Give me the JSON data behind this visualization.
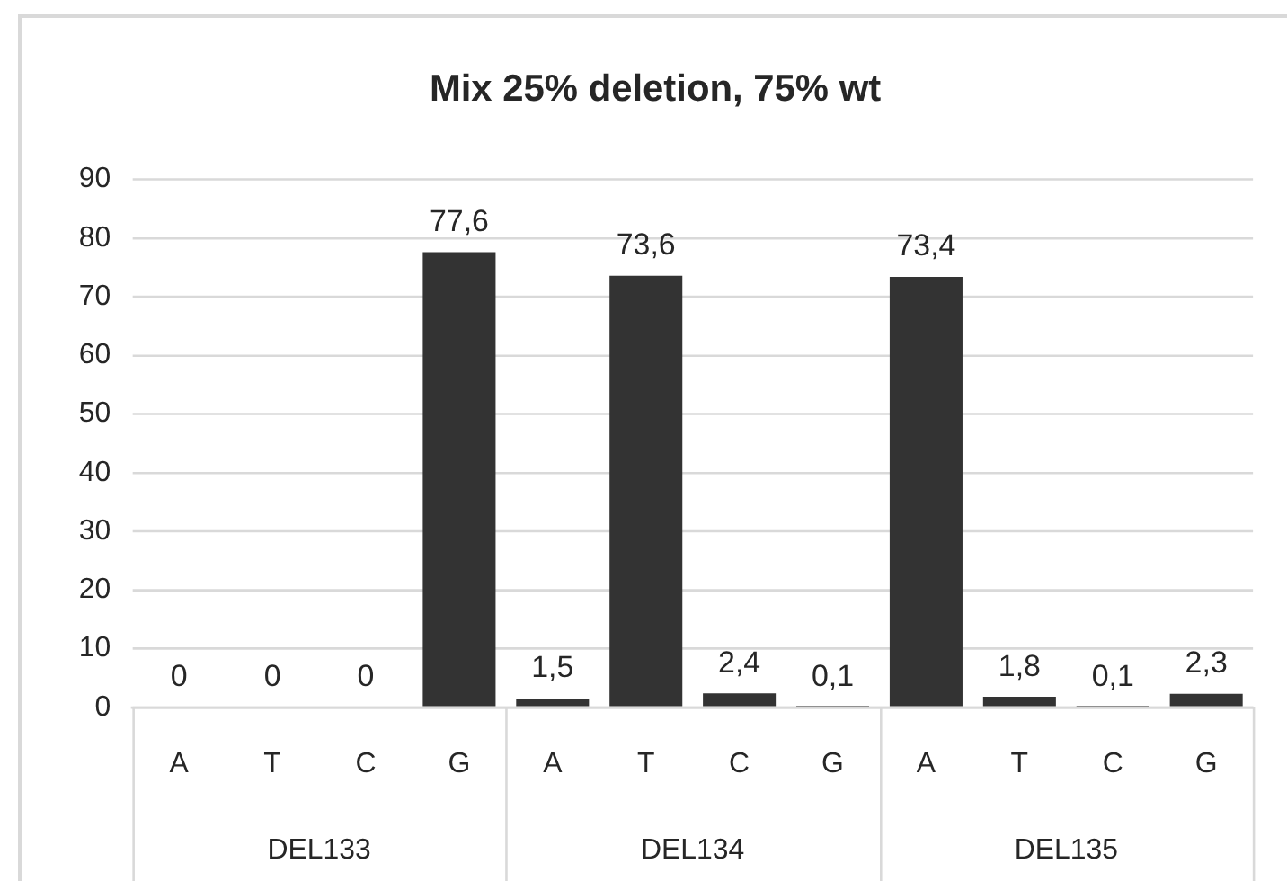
{
  "chart_data": {
    "type": "bar",
    "title": "Mix 25% deletion, 75% wt",
    "categories": [
      "A",
      "T",
      "C",
      "G",
      "A",
      "T",
      "C",
      "G",
      "A",
      "T",
      "C",
      "G"
    ],
    "values": [
      0,
      0,
      0,
      77.6,
      1.5,
      73.6,
      2.4,
      0.1,
      73.4,
      1.8,
      0.1,
      2.3
    ],
    "value_labels": [
      "0",
      "0",
      "0",
      "77,6",
      "1,5",
      "73,6",
      "2,4",
      "0,1",
      "73,4",
      "1,8",
      "0,1",
      "2,3"
    ],
    "color": "#333333",
    "ylim": [
      0,
      90
    ],
    "yticks": [
      0,
      10,
      20,
      30,
      40,
      50,
      60,
      70,
      80,
      90
    ],
    "grid": "y",
    "legend": false,
    "annotations": [
      "DEL133",
      "DEL134",
      "DEL135"
    ]
  }
}
